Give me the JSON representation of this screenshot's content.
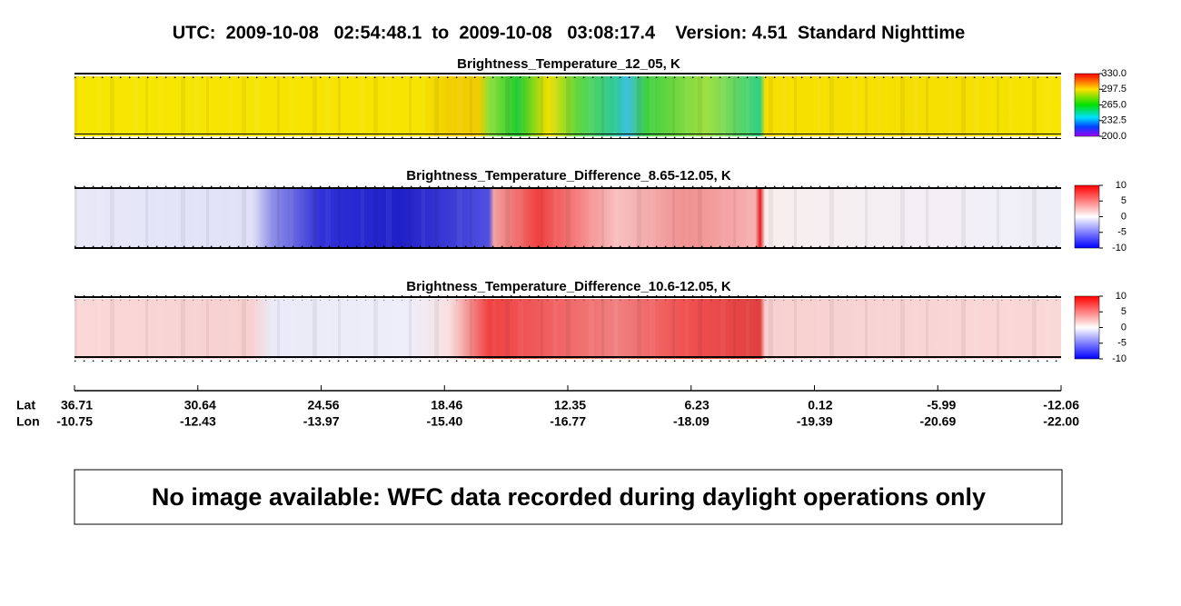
{
  "header": {
    "title": "UTC:  2009-10-08   02:54:48.1  to  2009-10-08   03:08:17.4    Version: 4.51  Standard Nighttime"
  },
  "panels": [
    {
      "title": "Brightness_Temperature_12_05, K",
      "colorbar_ticks": [
        "330.0",
        "297.5",
        "265.0",
        "232.5",
        "200.0"
      ]
    },
    {
      "title": "Brightness_Temperature_Difference_8.65-12.05, K",
      "colorbar_ticks": [
        "10",
        "5",
        "0",
        "-5",
        "-10"
      ]
    },
    {
      "title": "Brightness_Temperature_Difference_10.6-12.05, K",
      "colorbar_ticks": [
        "10",
        "5",
        "0",
        "-5",
        "-10"
      ]
    }
  ],
  "axis": {
    "lat_label": "Lat",
    "lon_label": "Lon",
    "lat": [
      "36.71",
      "30.64",
      "24.56",
      "18.46",
      "12.35",
      "6.23",
      "0.12",
      "-5.99",
      "-12.06"
    ],
    "lon": [
      "-10.75",
      "-12.43",
      "-13.97",
      "-15.40",
      "-16.77",
      "-18.09",
      "-19.39",
      "-20.69",
      "-22.00"
    ]
  },
  "message": "No image available: WFC data recorded during daylight operations only"
}
